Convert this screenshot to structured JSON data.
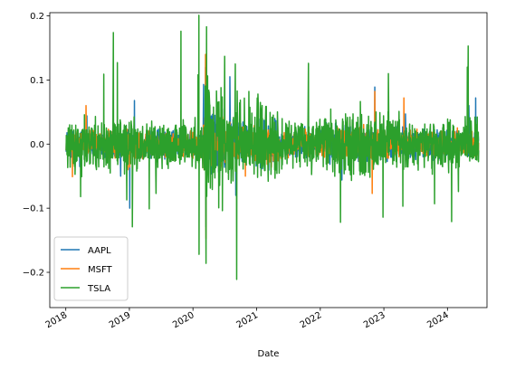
{
  "chart_data": {
    "type": "line",
    "title": "",
    "xlabel": "Date",
    "ylabel": "",
    "xlim": [
      "2017-10-01",
      "2024-08-15"
    ],
    "ylim": [
      -0.255,
      0.205
    ],
    "x_ticks": [
      "2018-01-01",
      "2019-01-01",
      "2020-01-01",
      "2021-01-01",
      "2022-01-01",
      "2023-01-01",
      "2024-01-01"
    ],
    "x_tick_labels": [
      "2018",
      "2019",
      "2020",
      "2021",
      "2022",
      "2023",
      "2024"
    ],
    "y_ticks": [
      -0.2,
      -0.1,
      0.0,
      0.1,
      0.2
    ],
    "y_tick_labels": [
      "−0.2",
      "−0.1",
      "0.0",
      "0.1",
      "0.2"
    ],
    "grid": false,
    "legend_position": "lower-left",
    "x_range": [
      "2018-01-03",
      "2024-06-28"
    ],
    "series": [
      {
        "name": "AAPL",
        "color": "#1f77b4",
        "values": [
          [
            "2018-01-03",
            -0.012
          ],
          [
            "2018-03-22",
            -0.035
          ],
          [
            "2018-05-02",
            0.044
          ],
          [
            "2018-11-12",
            -0.05
          ],
          [
            "2019-01-03",
            -0.1
          ],
          [
            "2019-01-30",
            0.068
          ],
          [
            "2020-03-02",
            0.093
          ],
          [
            "2020-03-16",
            -0.129
          ],
          [
            "2020-03-13",
            0.12
          ],
          [
            "2020-07-31",
            0.105
          ],
          [
            "2020-09-03",
            -0.08
          ],
          [
            "2021-01-27",
            -0.035
          ],
          [
            "2022-05-05",
            -0.056
          ],
          [
            "2022-11-10",
            0.089
          ],
          [
            "2023-05-05",
            0.047
          ],
          [
            "2024-05-03",
            0.06
          ],
          [
            "2024-06-11",
            0.072
          ],
          [
            "2024-06-28",
            0.005
          ]
        ]
      },
      {
        "name": "MSFT",
        "color": "#ff7f0e",
        "values": [
          [
            "2018-01-03",
            -0.01
          ],
          [
            "2018-02-08",
            -0.051
          ],
          [
            "2018-04-27",
            0.06
          ],
          [
            "2018-12-24",
            -0.04
          ],
          [
            "2019-01-03",
            -0.036
          ],
          [
            "2020-03-13",
            0.14
          ],
          [
            "2020-03-16",
            -0.147
          ],
          [
            "2020-03-24",
            0.091
          ],
          [
            "2020-10-28",
            -0.05
          ],
          [
            "2022-10-26",
            -0.077
          ],
          [
            "2022-11-10",
            0.082
          ],
          [
            "2023-04-26",
            0.072
          ],
          [
            "2024-01-31",
            -0.027
          ],
          [
            "2024-06-28",
            0.002
          ]
        ]
      },
      {
        "name": "TSLA",
        "color": "#2ca02c",
        "values": [
          [
            "2018-01-03",
            -0.01
          ],
          [
            "2018-03-27",
            -0.082
          ],
          [
            "2018-04-02",
            -0.051
          ],
          [
            "2018-08-07",
            0.109
          ],
          [
            "2018-10-01",
            0.174
          ],
          [
            "2018-10-24",
            0.127
          ],
          [
            "2018-12-17",
            -0.087
          ],
          [
            "2019-01-18",
            -0.129
          ],
          [
            "2019-04-25",
            -0.101
          ],
          [
            "2019-06-03",
            -0.077
          ],
          [
            "2019-10-24",
            0.176
          ],
          [
            "2020-01-30",
            0.108
          ],
          [
            "2020-02-04",
            0.201
          ],
          [
            "2020-02-05",
            -0.172
          ],
          [
            "2020-03-16",
            -0.186
          ],
          [
            "2020-03-19",
            0.183
          ],
          [
            "2020-04-01",
            0.084
          ],
          [
            "2020-06-10",
            0.088
          ],
          [
            "2020-07-01",
            0.137
          ],
          [
            "2020-08-31",
            0.125
          ],
          [
            "2020-09-08",
            -0.211
          ],
          [
            "2020-11-17",
            0.082
          ],
          [
            "2021-01-08",
            0.078
          ],
          [
            "2021-03-08",
            -0.058
          ],
          [
            "2021-10-25",
            0.126
          ],
          [
            "2022-04-27",
            -0.122
          ],
          [
            "2022-12-27",
            -0.114
          ],
          [
            "2023-01-27",
            0.11
          ],
          [
            "2023-04-20",
            -0.097
          ],
          [
            "2023-10-19",
            -0.093
          ],
          [
            "2024-01-25",
            -0.121
          ],
          [
            "2024-03-04",
            -0.074
          ],
          [
            "2024-04-24",
            0.12
          ],
          [
            "2024-04-29",
            0.153
          ],
          [
            "2024-06-28",
            -0.01
          ]
        ]
      }
    ]
  }
}
